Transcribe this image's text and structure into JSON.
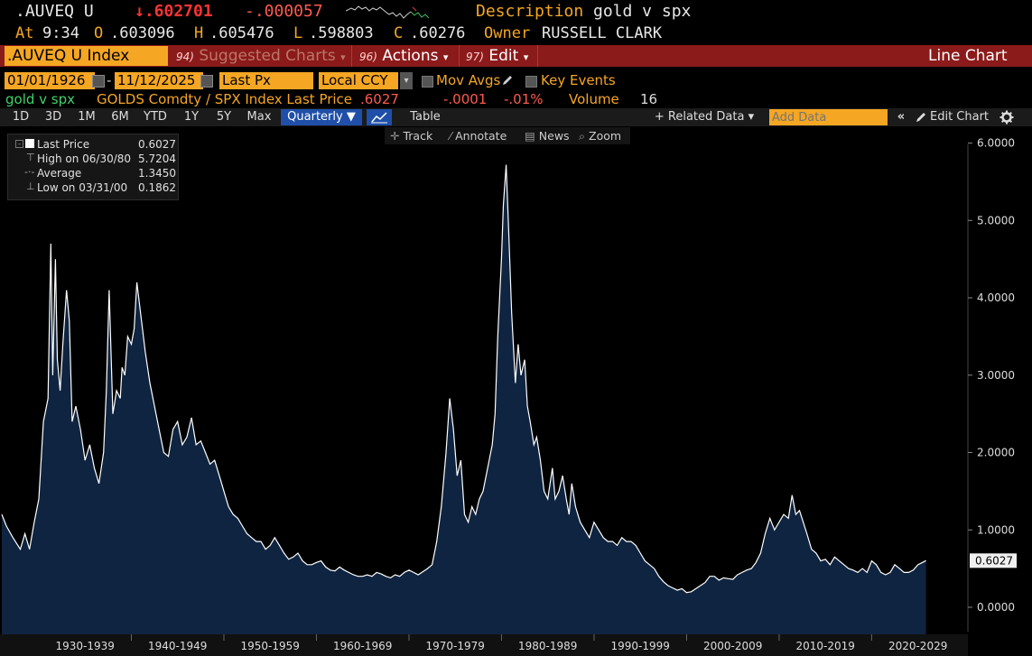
{
  "header": {
    "ticker": ".AUVEQ U",
    "last_value": "↓.602701",
    "change": "-.000057",
    "description_label": "Description",
    "description": "gold v spx",
    "at_label": "At",
    "time": "9:34",
    "open_label": "O",
    "open": ".603096",
    "high_label": "H",
    "high": ".605476",
    "low_label": "L",
    "low": ".598803",
    "close_label": "C",
    "close": ".60276",
    "owner_label": "Owner",
    "owner": "RUSSELL CLARK"
  },
  "menubar": {
    "security": ".AUVEQ U Index",
    "suggested_num": "94)",
    "suggested": "Suggested Charts",
    "actions_num": "96)",
    "actions": "Actions",
    "edit_num": "97)",
    "edit": "Edit",
    "chart_type": "Line Chart"
  },
  "settings": {
    "start_date": "01/01/1926",
    "end_date": "11/12/2025",
    "field": "Last Px",
    "currency": "Local CCY",
    "mov_avgs": "Mov Avgs",
    "key_events": "Key Events"
  },
  "series_row": {
    "name": "gold v spx",
    "formula": "GOLDS Comdty / SPX Index Last Price",
    "last": ".6027",
    "change": "-.0001",
    "pct": "-.01%",
    "volume_label": "Volume",
    "volume": "16"
  },
  "toolbar": {
    "ranges": [
      "1D",
      "3D",
      "1M",
      "6M",
      "YTD",
      "1Y",
      "5Y",
      "Max"
    ],
    "periodicity": "Quarterly ▼",
    "table": "Table",
    "related_data": "+ Related Data ▾",
    "add_data_placeholder": "Add Data",
    "edit_chart": "Edit Chart"
  },
  "subtools": {
    "track": "Track",
    "annotate": "Annotate",
    "news": "News",
    "zoom": "Zoom"
  },
  "legend": {
    "last_price_label": "Last Price",
    "last_price": "0.6027",
    "high_label": "High on 06/30/80",
    "high": "5.7204",
    "average_label": "Average",
    "average": "1.3450",
    "low_label": "Low on 03/31/00",
    "low": "0.1862"
  },
  "colors": {
    "accent_orange": "#f5a623",
    "menubar_red": "#8b1a1a",
    "area_fill": "#0f2440",
    "line": "#ffffff",
    "negative": "#ff3333"
  },
  "chart_data": {
    "type": "area",
    "title": "gold v spx",
    "series_name": "GOLDS Comdty / SPX Index Last Price",
    "ylim": [
      -0.35,
      6.1
    ],
    "xlim": [
      1926,
      2030.4
    ],
    "y_ticks": [
      "0.0000",
      "1.0000",
      "2.0000",
      "3.0000",
      "4.0000",
      "5.0000",
      "6.0000"
    ],
    "x_labels": [
      "1930-1939",
      "1940-1949",
      "1950-1959",
      "1960-1969",
      "1970-1979",
      "1980-1989",
      "1990-1999",
      "2000-2009",
      "2010-2019",
      "2020-2029"
    ],
    "last_label": "0.6027",
    "points": [
      [
        1926.0,
        1.2
      ],
      [
        1926.5,
        1.05
      ],
      [
        1927.2,
        0.9
      ],
      [
        1928.0,
        0.75
      ],
      [
        1928.5,
        0.95
      ],
      [
        1929.0,
        0.75
      ],
      [
        1929.5,
        1.1
      ],
      [
        1930.0,
        1.4
      ],
      [
        1930.5,
        2.4
      ],
      [
        1931.0,
        2.7
      ],
      [
        1931.3,
        4.7
      ],
      [
        1931.5,
        3.0
      ],
      [
        1931.8,
        4.5
      ],
      [
        1932.0,
        3.2
      ],
      [
        1932.3,
        2.8
      ],
      [
        1932.6,
        3.4
      ],
      [
        1933.0,
        4.1
      ],
      [
        1933.3,
        3.7
      ],
      [
        1933.6,
        2.4
      ],
      [
        1934.0,
        2.6
      ],
      [
        1934.5,
        2.3
      ],
      [
        1935.0,
        1.9
      ],
      [
        1935.5,
        2.1
      ],
      [
        1936.0,
        1.8
      ],
      [
        1936.5,
        1.6
      ],
      [
        1937.0,
        2.0
      ],
      [
        1937.3,
        2.8
      ],
      [
        1937.6,
        4.1
      ],
      [
        1938.0,
        2.5
      ],
      [
        1938.4,
        2.8
      ],
      [
        1938.8,
        2.7
      ],
      [
        1939.0,
        3.1
      ],
      [
        1939.3,
        3.0
      ],
      [
        1939.6,
        3.5
      ],
      [
        1940.0,
        3.4
      ],
      [
        1940.3,
        3.6
      ],
      [
        1940.6,
        4.2
      ],
      [
        1941.0,
        3.8
      ],
      [
        1941.5,
        3.3
      ],
      [
        1942.0,
        2.9
      ],
      [
        1942.5,
        2.6
      ],
      [
        1943.0,
        2.3
      ],
      [
        1943.5,
        2.0
      ],
      [
        1944.0,
        1.95
      ],
      [
        1944.5,
        2.3
      ],
      [
        1945.0,
        2.4
      ],
      [
        1945.5,
        2.1
      ],
      [
        1946.0,
        2.2
      ],
      [
        1946.5,
        2.45
      ],
      [
        1947.0,
        2.1
      ],
      [
        1947.5,
        2.15
      ],
      [
        1948.0,
        2.0
      ],
      [
        1948.5,
        1.85
      ],
      [
        1949.0,
        1.9
      ],
      [
        1949.5,
        1.7
      ],
      [
        1950.0,
        1.5
      ],
      [
        1950.5,
        1.3
      ],
      [
        1951.0,
        1.2
      ],
      [
        1951.5,
        1.15
      ],
      [
        1952.0,
        1.05
      ],
      [
        1952.5,
        0.95
      ],
      [
        1953.0,
        0.9
      ],
      [
        1953.5,
        0.85
      ],
      [
        1954.0,
        0.85
      ],
      [
        1954.5,
        0.75
      ],
      [
        1955.0,
        0.8
      ],
      [
        1955.5,
        0.9
      ],
      [
        1956.0,
        0.8
      ],
      [
        1956.5,
        0.7
      ],
      [
        1957.0,
        0.62
      ],
      [
        1957.5,
        0.65
      ],
      [
        1958.0,
        0.7
      ],
      [
        1958.5,
        0.6
      ],
      [
        1959.0,
        0.55
      ],
      [
        1959.5,
        0.55
      ],
      [
        1960.0,
        0.58
      ],
      [
        1960.5,
        0.6
      ],
      [
        1961.0,
        0.52
      ],
      [
        1961.5,
        0.48
      ],
      [
        1962.0,
        0.47
      ],
      [
        1962.5,
        0.52
      ],
      [
        1963.0,
        0.48
      ],
      [
        1963.5,
        0.45
      ],
      [
        1964.0,
        0.42
      ],
      [
        1964.5,
        0.4
      ],
      [
        1965.0,
        0.4
      ],
      [
        1965.5,
        0.42
      ],
      [
        1966.0,
        0.4
      ],
      [
        1966.5,
        0.45
      ],
      [
        1967.0,
        0.43
      ],
      [
        1967.5,
        0.4
      ],
      [
        1968.0,
        0.38
      ],
      [
        1968.5,
        0.42
      ],
      [
        1969.0,
        0.4
      ],
      [
        1969.5,
        0.45
      ],
      [
        1970.0,
        0.48
      ],
      [
        1970.5,
        0.45
      ],
      [
        1971.0,
        0.42
      ],
      [
        1971.5,
        0.46
      ],
      [
        1972.0,
        0.5
      ],
      [
        1972.5,
        0.55
      ],
      [
        1973.0,
        0.85
      ],
      [
        1973.5,
        1.3
      ],
      [
        1974.0,
        2.0
      ],
      [
        1974.4,
        2.7
      ],
      [
        1974.8,
        2.3
      ],
      [
        1975.2,
        1.7
      ],
      [
        1975.6,
        1.9
      ],
      [
        1976.0,
        1.2
      ],
      [
        1976.4,
        1.1
      ],
      [
        1976.8,
        1.3
      ],
      [
        1977.2,
        1.2
      ],
      [
        1977.6,
        1.4
      ],
      [
        1978.0,
        1.5
      ],
      [
        1978.5,
        1.8
      ],
      [
        1979.0,
        2.1
      ],
      [
        1979.3,
        2.5
      ],
      [
        1979.6,
        3.5
      ],
      [
        1980.0,
        4.5
      ],
      [
        1980.2,
        5.2
      ],
      [
        1980.5,
        5.72
      ],
      [
        1980.8,
        4.8
      ],
      [
        1981.1,
        3.8
      ],
      [
        1981.5,
        2.9
      ],
      [
        1981.8,
        3.4
      ],
      [
        1982.1,
        3.0
      ],
      [
        1982.5,
        3.2
      ],
      [
        1982.8,
        2.6
      ],
      [
        1983.1,
        2.4
      ],
      [
        1983.5,
        2.1
      ],
      [
        1983.8,
        2.2
      ],
      [
        1984.2,
        1.9
      ],
      [
        1984.6,
        1.5
      ],
      [
        1985.0,
        1.4
      ],
      [
        1985.5,
        1.8
      ],
      [
        1985.8,
        1.4
      ],
      [
        1986.2,
        1.5
      ],
      [
        1986.6,
        1.7
      ],
      [
        1987.0,
        1.4
      ],
      [
        1987.3,
        1.2
      ],
      [
        1987.6,
        1.6
      ],
      [
        1988.0,
        1.3
      ],
      [
        1988.5,
        1.1
      ],
      [
        1989.0,
        1.0
      ],
      [
        1989.5,
        0.9
      ],
      [
        1990.0,
        1.1
      ],
      [
        1990.5,
        1.0
      ],
      [
        1991.0,
        0.9
      ],
      [
        1991.5,
        0.85
      ],
      [
        1992.0,
        0.85
      ],
      [
        1992.5,
        0.8
      ],
      [
        1993.0,
        0.9
      ],
      [
        1993.5,
        0.85
      ],
      [
        1994.0,
        0.85
      ],
      [
        1994.5,
        0.8
      ],
      [
        1995.0,
        0.7
      ],
      [
        1995.5,
        0.6
      ],
      [
        1996.0,
        0.55
      ],
      [
        1996.5,
        0.5
      ],
      [
        1997.0,
        0.4
      ],
      [
        1997.5,
        0.33
      ],
      [
        1998.0,
        0.28
      ],
      [
        1998.5,
        0.25
      ],
      [
        1999.0,
        0.22
      ],
      [
        1999.5,
        0.24
      ],
      [
        2000.0,
        0.19
      ],
      [
        2000.5,
        0.2
      ],
      [
        2001.0,
        0.24
      ],
      [
        2001.5,
        0.28
      ],
      [
        2002.0,
        0.32
      ],
      [
        2002.5,
        0.4
      ],
      [
        2003.0,
        0.4
      ],
      [
        2003.5,
        0.35
      ],
      [
        2004.0,
        0.38
      ],
      [
        2004.5,
        0.37
      ],
      [
        2005.0,
        0.36
      ],
      [
        2005.5,
        0.42
      ],
      [
        2006.0,
        0.45
      ],
      [
        2006.5,
        0.48
      ],
      [
        2007.0,
        0.5
      ],
      [
        2007.5,
        0.58
      ],
      [
        2008.0,
        0.7
      ],
      [
        2008.5,
        0.95
      ],
      [
        2009.0,
        1.15
      ],
      [
        2009.5,
        1.0
      ],
      [
        2010.0,
        1.1
      ],
      [
        2010.5,
        1.2
      ],
      [
        2011.0,
        1.15
      ],
      [
        2011.4,
        1.45
      ],
      [
        2011.8,
        1.2
      ],
      [
        2012.2,
        1.25
      ],
      [
        2012.6,
        1.1
      ],
      [
        2013.0,
        0.95
      ],
      [
        2013.5,
        0.75
      ],
      [
        2014.0,
        0.7
      ],
      [
        2014.5,
        0.6
      ],
      [
        2015.0,
        0.62
      ],
      [
        2015.5,
        0.55
      ],
      [
        2016.0,
        0.65
      ],
      [
        2016.5,
        0.6
      ],
      [
        2017.0,
        0.55
      ],
      [
        2017.5,
        0.5
      ],
      [
        2018.0,
        0.48
      ],
      [
        2018.5,
        0.45
      ],
      [
        2019.0,
        0.5
      ],
      [
        2019.5,
        0.45
      ],
      [
        2020.0,
        0.6
      ],
      [
        2020.5,
        0.55
      ],
      [
        2021.0,
        0.45
      ],
      [
        2021.5,
        0.42
      ],
      [
        2022.0,
        0.45
      ],
      [
        2022.5,
        0.55
      ],
      [
        2023.0,
        0.5
      ],
      [
        2023.5,
        0.45
      ],
      [
        2024.0,
        0.45
      ],
      [
        2024.5,
        0.48
      ],
      [
        2025.0,
        0.55
      ],
      [
        2025.5,
        0.58
      ],
      [
        2025.87,
        0.6027
      ]
    ]
  }
}
